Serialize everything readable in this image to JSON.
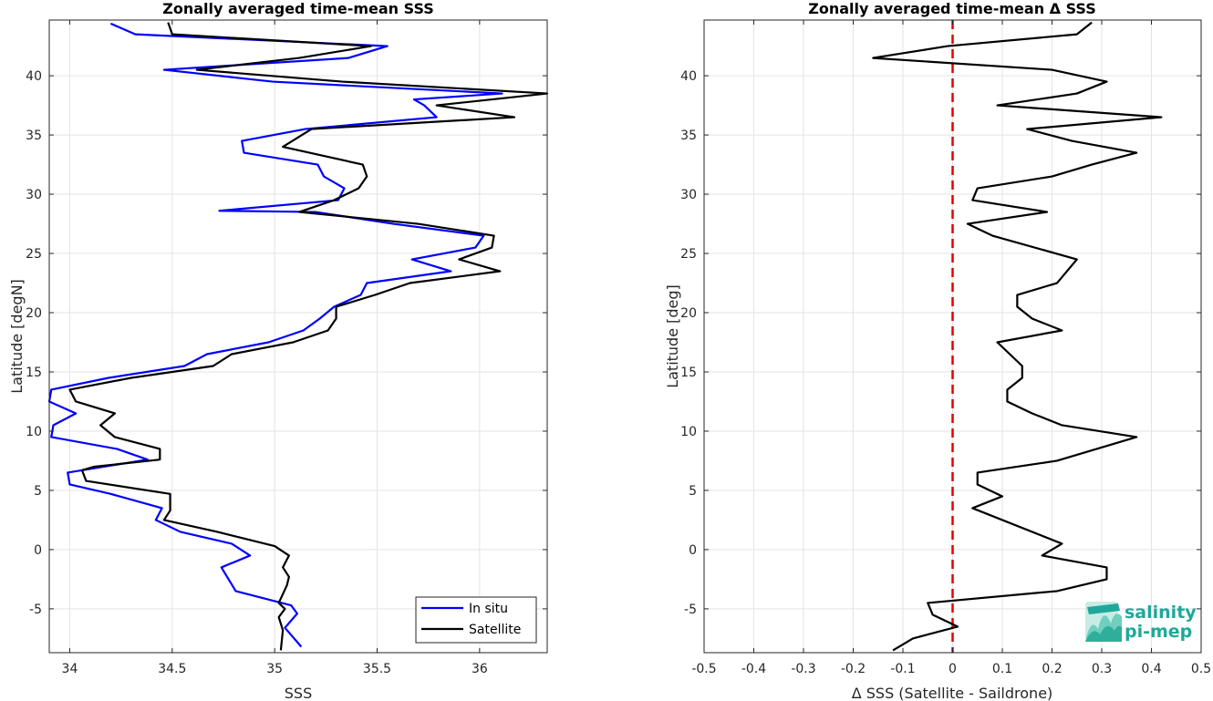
{
  "chart_data": [
    {
      "type": "line",
      "title": "Zonally averaged time-mean SSS",
      "xlabel": "SSS",
      "ylabel": "Latitude [degN]",
      "xlim": [
        33.9,
        36.33
      ],
      "ylim": [
        -8.7,
        44.7
      ],
      "xticks": [
        34,
        34.5,
        35,
        35.5,
        36
      ],
      "xtick_labels": [
        "34",
        "34.5",
        "35",
        "35.5",
        "36"
      ],
      "yticks": [
        -5,
        0,
        5,
        10,
        15,
        20,
        25,
        30,
        35,
        40
      ],
      "ytick_labels": [
        "-5",
        "0",
        "5",
        "10",
        "15",
        "20",
        "25",
        "30",
        "35",
        "40"
      ],
      "grid": true,
      "legend_position": "bottom-right",
      "series": [
        {
          "name": "In situ",
          "color": "#0000ff",
          "points": [
            [
              35.13,
              -8.2
            ],
            [
              35.05,
              -6.6
            ],
            [
              35.11,
              -5.4
            ],
            [
              35.08,
              -4.7
            ],
            [
              34.81,
              -3.5
            ],
            [
              34.74,
              -1.5
            ],
            [
              34.88,
              -0.5
            ],
            [
              34.79,
              0.5
            ],
            [
              34.54,
              1.5
            ],
            [
              34.42,
              2.5
            ],
            [
              34.45,
              3.5
            ],
            [
              34.2,
              4.7
            ],
            [
              34.0,
              5.5
            ],
            [
              33.99,
              6.5
            ],
            [
              34.38,
              7.6
            ],
            [
              34.23,
              8.5
            ],
            [
              33.91,
              9.5
            ],
            [
              33.92,
              10.5
            ],
            [
              34.03,
              11.5
            ],
            [
              33.9,
              12.5
            ],
            [
              33.91,
              13.5
            ],
            [
              34.19,
              14.5
            ],
            [
              34.56,
              15.5
            ],
            [
              34.67,
              16.5
            ],
            [
              34.97,
              17.5
            ],
            [
              35.14,
              18.5
            ],
            [
              35.22,
              19.5
            ],
            [
              35.29,
              20.5
            ],
            [
              35.42,
              21.5
            ],
            [
              35.45,
              22.5
            ],
            [
              35.86,
              23.5
            ],
            [
              35.67,
              24.5
            ],
            [
              35.98,
              25.5
            ],
            [
              36.02,
              26.5
            ],
            [
              35.58,
              27.5
            ],
            [
              35.2,
              28.5
            ],
            [
              34.73,
              28.6
            ],
            [
              35.31,
              29.5
            ],
            [
              35.34,
              30.5
            ],
            [
              35.24,
              31.5
            ],
            [
              35.21,
              32.5
            ],
            [
              34.85,
              33.5
            ],
            [
              34.84,
              34.5
            ],
            [
              35.15,
              35.5
            ],
            [
              35.79,
              36.5
            ],
            [
              35.73,
              37.5
            ],
            [
              35.68,
              38.0
            ],
            [
              36.11,
              38.5
            ],
            [
              34.99,
              39.5
            ],
            [
              34.46,
              40.5
            ],
            [
              35.36,
              41.5
            ],
            [
              35.55,
              42.5
            ],
            [
              34.32,
              43.5
            ],
            [
              34.2,
              44.4
            ]
          ]
        },
        {
          "name": "Satellite",
          "color": "#000000",
          "points": [
            [
              35.03,
              -8.5
            ],
            [
              35.04,
              -6.8
            ],
            [
              35.02,
              -5.7
            ],
            [
              35.05,
              -5.0
            ],
            [
              35.02,
              -4.5
            ],
            [
              35.06,
              -3.0
            ],
            [
              35.07,
              -2.3
            ],
            [
              35.04,
              -1.5
            ],
            [
              35.07,
              -0.5
            ],
            [
              35.0,
              0.3
            ],
            [
              34.72,
              1.5
            ],
            [
              34.46,
              2.5
            ],
            [
              34.49,
              3.3
            ],
            [
              34.49,
              4.7
            ],
            [
              34.08,
              5.8
            ],
            [
              34.06,
              6.7
            ],
            [
              34.12,
              7.0
            ],
            [
              34.44,
              7.6
            ],
            [
              34.44,
              8.5
            ],
            [
              34.22,
              9.5
            ],
            [
              34.15,
              10.5
            ],
            [
              34.22,
              11.5
            ],
            [
              34.03,
              12.5
            ],
            [
              34.0,
              13.5
            ],
            [
              34.3,
              14.5
            ],
            [
              34.7,
              15.5
            ],
            [
              34.79,
              16.5
            ],
            [
              35.09,
              17.5
            ],
            [
              35.26,
              18.5
            ],
            [
              35.3,
              19.5
            ],
            [
              35.3,
              20.5
            ],
            [
              35.49,
              21.5
            ],
            [
              35.66,
              22.5
            ],
            [
              36.1,
              23.5
            ],
            [
              35.9,
              24.5
            ],
            [
              36.06,
              25.5
            ],
            [
              36.07,
              26.5
            ],
            [
              35.7,
              27.5
            ],
            [
              35.12,
              28.5
            ],
            [
              35.29,
              29.5
            ],
            [
              35.41,
              30.5
            ],
            [
              35.45,
              31.5
            ],
            [
              35.43,
              32.5
            ],
            [
              35.04,
              34.0
            ],
            [
              35.18,
              35.5
            ],
            [
              36.17,
              36.5
            ],
            [
              35.79,
              37.5
            ],
            [
              36.33,
              38.5
            ],
            [
              35.33,
              39.5
            ],
            [
              34.62,
              40.5
            ],
            [
              35.12,
              41.5
            ],
            [
              35.47,
              42.5
            ],
            [
              34.5,
              43.5
            ],
            [
              34.48,
              44.5
            ]
          ]
        }
      ]
    },
    {
      "type": "line",
      "title": "Zonally averaged time-mean Δ SSS",
      "xlabel": "Δ SSS (Satellite - Saildrone)",
      "ylabel": "Latitude [deg]",
      "xlim": [
        -0.5,
        0.5
      ],
      "ylim": [
        -8.7,
        44.7
      ],
      "xticks": [
        -0.5,
        -0.4,
        -0.3,
        -0.2,
        -0.1,
        0,
        0.1,
        0.2,
        0.3,
        0.4,
        0.5
      ],
      "xtick_labels": [
        "-0.5",
        "-0.4",
        "-0.3",
        "-0.2",
        "-0.1",
        "0",
        "0.1",
        "0.2",
        "0.3",
        "0.4",
        "0.5"
      ],
      "yticks": [
        -5,
        0,
        5,
        10,
        15,
        20,
        25,
        30,
        35,
        40
      ],
      "ytick_labels": [
        "-5",
        "0",
        "5",
        "10",
        "15",
        "20",
        "25",
        "30",
        "35",
        "40"
      ],
      "grid": true,
      "reference_line": {
        "x": 0,
        "color": "#e60000",
        "style": "dashed"
      },
      "series": [
        {
          "color": "#000000",
          "points": [
            [
              -0.12,
              -8.5
            ],
            [
              -0.08,
              -7.5
            ],
            [
              0.01,
              -6.5
            ],
            [
              -0.04,
              -5.5
            ],
            [
              -0.05,
              -4.5
            ],
            [
              0.21,
              -3.5
            ],
            [
              0.31,
              -2.5
            ],
            [
              0.31,
              -1.5
            ],
            [
              0.18,
              -0.5
            ],
            [
              0.22,
              0.5
            ],
            [
              0.1,
              2.5
            ],
            [
              0.04,
              3.5
            ],
            [
              0.1,
              4.5
            ],
            [
              0.05,
              5.5
            ],
            [
              0.05,
              6.5
            ],
            [
              0.21,
              7.5
            ],
            [
              0.37,
              9.5
            ],
            [
              0.22,
              10.5
            ],
            [
              0.16,
              11.5
            ],
            [
              0.11,
              12.5
            ],
            [
              0.11,
              13.5
            ],
            [
              0.14,
              14.5
            ],
            [
              0.14,
              15.5
            ],
            [
              0.09,
              17.5
            ],
            [
              0.22,
              18.5
            ],
            [
              0.16,
              19.5
            ],
            [
              0.13,
              20.5
            ],
            [
              0.13,
              21.5
            ],
            [
              0.21,
              22.5
            ],
            [
              0.25,
              24.5
            ],
            [
              0.08,
              26.5
            ],
            [
              0.03,
              27.5
            ],
            [
              0.19,
              28.5
            ],
            [
              0.04,
              29.5
            ],
            [
              0.05,
              30.5
            ],
            [
              0.2,
              31.5
            ],
            [
              0.28,
              32.5
            ],
            [
              0.37,
              33.5
            ],
            [
              0.24,
              34.5
            ],
            [
              0.15,
              35.5
            ],
            [
              0.42,
              36.5
            ],
            [
              0.09,
              37.5
            ],
            [
              0.25,
              38.5
            ],
            [
              0.31,
              39.5
            ],
            [
              0.2,
              40.5
            ],
            [
              -0.16,
              41.5
            ],
            [
              -0.01,
              42.5
            ],
            [
              0.25,
              43.5
            ],
            [
              0.28,
              44.5
            ]
          ]
        }
      ]
    }
  ],
  "logo": {
    "line1": "salinity",
    "line2": "pi-mep"
  }
}
